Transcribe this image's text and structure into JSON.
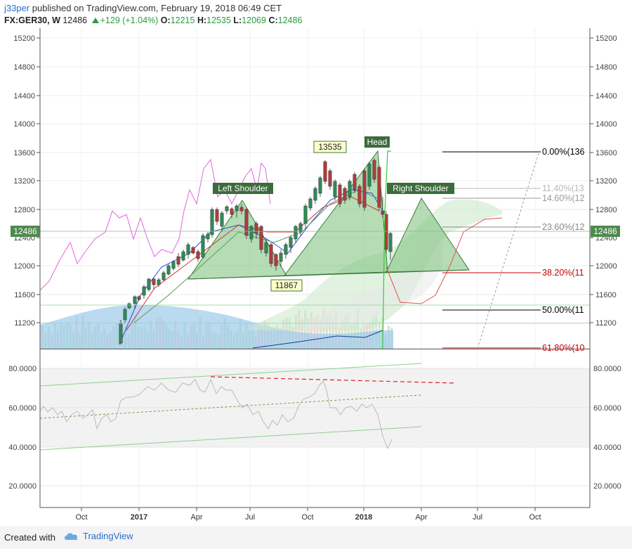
{
  "header": {
    "user": "j33per",
    "published": "published on TradingView.com, February 19, 2018 06:49 CET",
    "symbol": "FX:GER30, W",
    "last": "12486",
    "change": "+129 (+1.04%)",
    "o_label": "O:",
    "o_value": "12215",
    "h_label": "H:",
    "h_value": "12535",
    "l_label": "L:",
    "l_value": "12069",
    "c_label": "C:",
    "c_value": "12486"
  },
  "price_axis": [
    "15200",
    "14800",
    "14400",
    "14000",
    "13600",
    "13200",
    "12800",
    "12400",
    "12000",
    "11600",
    "11200"
  ],
  "price_badge": "12486",
  "time_axis": [
    "Oct",
    "2017",
    "Apr",
    "Jul",
    "Oct",
    "2018",
    "Apr",
    "Jul",
    "Oct"
  ],
  "annotations": {
    "left_shoulder": "Left Shoulder",
    "head": "Head",
    "right_shoulder": "Right Shoulder",
    "high_label": "13535",
    "low_label": "11867"
  },
  "fib_levels": [
    {
      "label": "0.00%(136",
      "color": "#000000"
    },
    {
      "label": "11.40%(13",
      "color": "#b8b8b8"
    },
    {
      "label": "14.60%(12",
      "color": "#999999"
    },
    {
      "label": "23.60%(12",
      "color": "#888888"
    },
    {
      "label": "38.20%(11",
      "color": "#cc0000"
    },
    {
      "label": "50.00%(11",
      "color": "#000000"
    },
    {
      "label": "61.80%(10",
      "color": "#cc0000"
    }
  ],
  "rsi_axis": [
    "80.0000",
    "60.0000",
    "40.0000",
    "20.0000"
  ],
  "colors": {
    "up": "#2a9d3f",
    "down": "#c0392b",
    "accent": "#2a6fc9"
  },
  "footer": {
    "created": "Created with",
    "brand": "TradingView"
  }
}
